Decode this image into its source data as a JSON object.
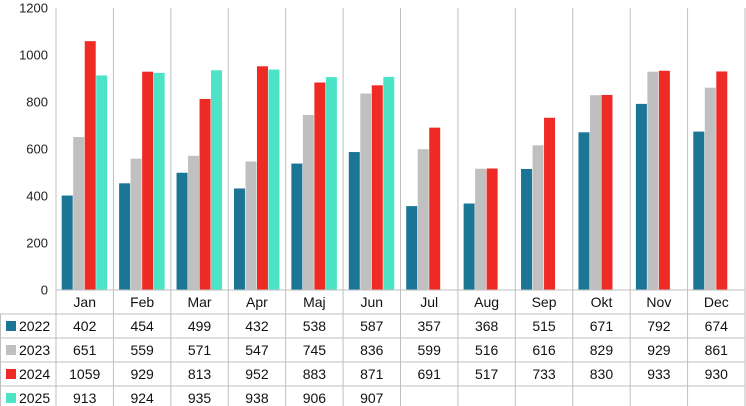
{
  "chart_data": {
    "type": "bar",
    "categories": [
      "Jan",
      "Feb",
      "Mar",
      "Apr",
      "Maj",
      "Jun",
      "Jul",
      "Aug",
      "Sep",
      "Okt",
      "Nov",
      "Dec"
    ],
    "series": [
      {
        "name": "2022",
        "color": "#1b7594",
        "values": [
          402,
          454,
          499,
          432,
          538,
          587,
          357,
          368,
          515,
          671,
          792,
          674
        ]
      },
      {
        "name": "2023",
        "color": "#c0c0c0",
        "values": [
          651,
          559,
          571,
          547,
          745,
          836,
          599,
          516,
          616,
          829,
          929,
          861
        ]
      },
      {
        "name": "2024",
        "color": "#ee2b24",
        "values": [
          1059,
          929,
          813,
          952,
          883,
          871,
          691,
          517,
          733,
          830,
          933,
          930
        ]
      },
      {
        "name": "2025",
        "color": "#4de3c6",
        "values": [
          913,
          924,
          935,
          938,
          906,
          907,
          null,
          null,
          null,
          null,
          null,
          null
        ]
      }
    ],
    "ylim": [
      0,
      1200
    ],
    "yticks": [
      0,
      200,
      400,
      600,
      800,
      1000,
      1200
    ],
    "grid": true,
    "legend": "data-table"
  }
}
